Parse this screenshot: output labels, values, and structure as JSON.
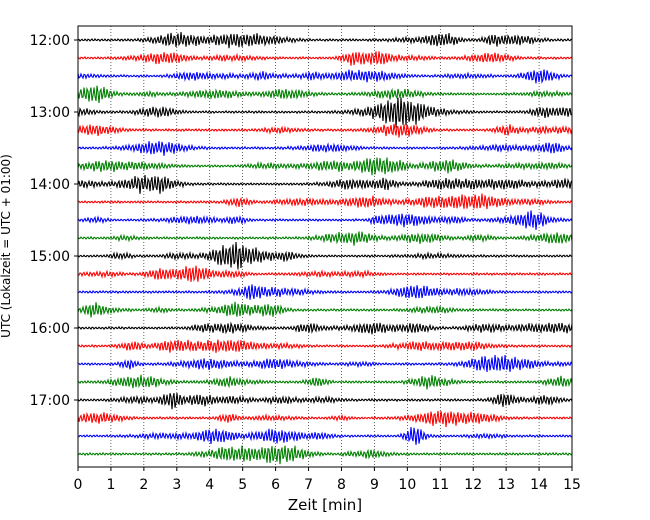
{
  "chart_data": {
    "type": "line",
    "title": "",
    "xlabel": "Zeit  [min]",
    "ylabel": "UTC (Lokalzeit = UTC + 01:00)",
    "xlim": [
      0,
      15
    ],
    "x_ticks": [
      0,
      1,
      2,
      3,
      4,
      5,
      6,
      7,
      8,
      9,
      10,
      11,
      12,
      13,
      14,
      15
    ],
    "y_tick_labels": [
      "12:00",
      "13:00",
      "14:00",
      "15:00",
      "16:00",
      "17:00"
    ],
    "start_time": "12:00",
    "trace_interval_minutes": 15,
    "trace_count": 24,
    "trace_colors": [
      "#000000",
      "#ff0000",
      "#0000ff",
      "#008000"
    ],
    "grid": "vertical dotted at each minute",
    "legend": "none"
  }
}
